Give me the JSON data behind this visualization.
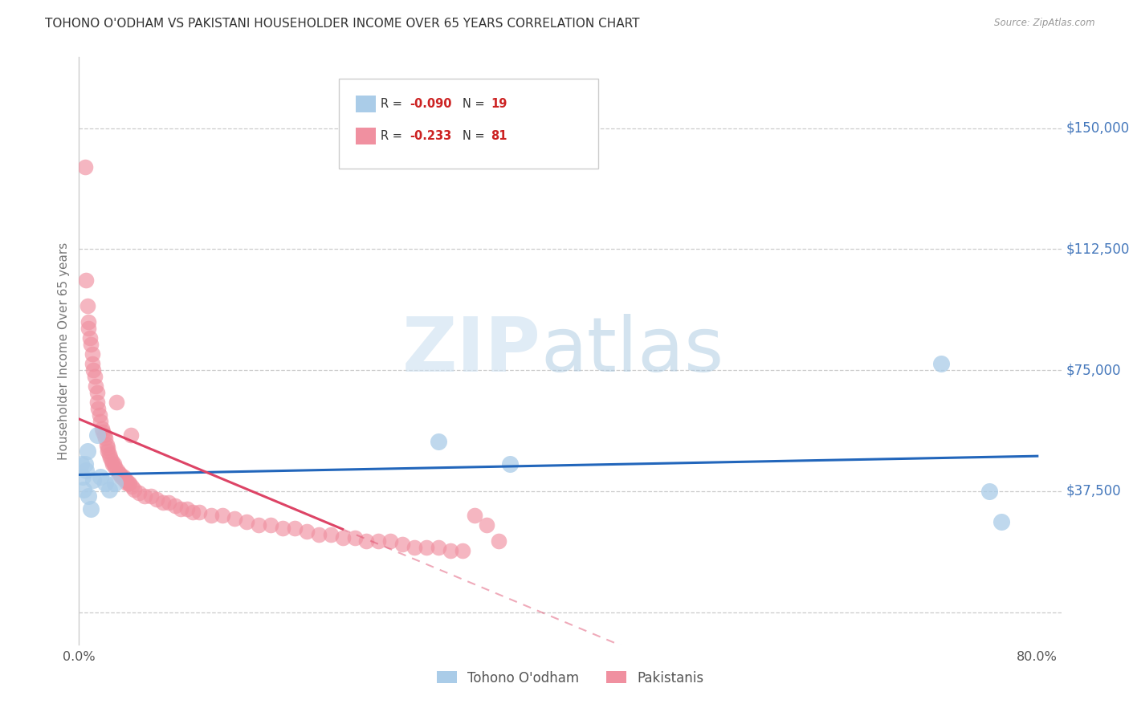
{
  "title": "TOHONO O'ODHAM VS PAKISTANI HOUSEHOLDER INCOME OVER 65 YEARS CORRELATION CHART",
  "source": "Source: ZipAtlas.com",
  "ylabel": "Householder Income Over 65 years",
  "xlim": [
    0.0,
    0.82
  ],
  "ylim": [
    -10000,
    172000
  ],
  "yticks": [
    0,
    37500,
    75000,
    112500,
    150000
  ],
  "xticks": [
    0.0,
    0.1,
    0.2,
    0.3,
    0.4,
    0.5,
    0.6,
    0.7,
    0.8
  ],
  "xtick_labels": [
    "0.0%",
    "",
    "",
    "",
    "",
    "",
    "",
    "",
    "80.0%"
  ],
  "tohono_R": -0.09,
  "tohono_N": 19,
  "pakistani_R": -0.233,
  "pakistani_N": 81,
  "tohono_color": "#aacce8",
  "pakistani_color": "#f090a0",
  "trend_tohono_color": "#2266bb",
  "trend_pakistani_color": "#dd4466",
  "watermark_zip_color": "#cce0f0",
  "watermark_atlas_color": "#a8c8e0",
  "title_color": "#333333",
  "source_color": "#999999",
  "ylabel_color": "#777777",
  "tick_label_color": "#4477bb",
  "bg_color": "#ffffff",
  "grid_color": "#cccccc",
  "tohono_x": [
    0.002,
    0.003,
    0.004,
    0.005,
    0.006,
    0.007,
    0.008,
    0.01,
    0.012,
    0.015,
    0.018,
    0.022,
    0.025,
    0.03,
    0.3,
    0.36,
    0.72,
    0.76,
    0.77
  ],
  "tohono_y": [
    46000,
    42000,
    38000,
    46000,
    44000,
    50000,
    36000,
    32000,
    41000,
    55000,
    42000,
    40000,
    38000,
    40000,
    53000,
    46000,
    77000,
    37500,
    28000
  ],
  "pakistani_x": [
    0.005,
    0.006,
    0.007,
    0.008,
    0.008,
    0.009,
    0.01,
    0.011,
    0.011,
    0.012,
    0.013,
    0.014,
    0.015,
    0.015,
    0.016,
    0.017,
    0.018,
    0.019,
    0.02,
    0.021,
    0.022,
    0.023,
    0.024,
    0.024,
    0.025,
    0.026,
    0.027,
    0.028,
    0.029,
    0.03,
    0.031,
    0.032,
    0.033,
    0.034,
    0.035,
    0.036,
    0.037,
    0.038,
    0.039,
    0.04,
    0.041,
    0.042,
    0.043,
    0.044,
    0.046,
    0.05,
    0.055,
    0.06,
    0.065,
    0.07,
    0.075,
    0.08,
    0.085,
    0.09,
    0.095,
    0.1,
    0.11,
    0.12,
    0.13,
    0.14,
    0.15,
    0.16,
    0.17,
    0.18,
    0.19,
    0.2,
    0.21,
    0.22,
    0.23,
    0.24,
    0.25,
    0.26,
    0.27,
    0.28,
    0.29,
    0.3,
    0.31,
    0.32,
    0.33,
    0.34,
    0.35
  ],
  "pakistani_y": [
    138000,
    103000,
    95000,
    90000,
    88000,
    85000,
    83000,
    80000,
    77000,
    75000,
    73000,
    70000,
    68000,
    65000,
    63000,
    61000,
    59000,
    57000,
    56000,
    55000,
    54000,
    52000,
    51000,
    50000,
    49000,
    48000,
    47000,
    46000,
    46000,
    45000,
    65000,
    44000,
    43000,
    43000,
    42000,
    42000,
    42000,
    41000,
    41000,
    40000,
    40000,
    40000,
    55000,
    39000,
    38000,
    37000,
    36000,
    36000,
    35000,
    34000,
    34000,
    33000,
    32000,
    32000,
    31000,
    31000,
    30000,
    30000,
    29000,
    28000,
    27000,
    27000,
    26000,
    26000,
    25000,
    24000,
    24000,
    23000,
    23000,
    22000,
    22000,
    22000,
    21000,
    20000,
    20000,
    20000,
    19000,
    19000,
    30000,
    27000,
    22000
  ],
  "ytick_right_labels": [
    "$150,000",
    "$112,500",
    "$75,000",
    "$37,500"
  ],
  "ytick_right_vals": [
    150000,
    112500,
    75000,
    37500
  ]
}
